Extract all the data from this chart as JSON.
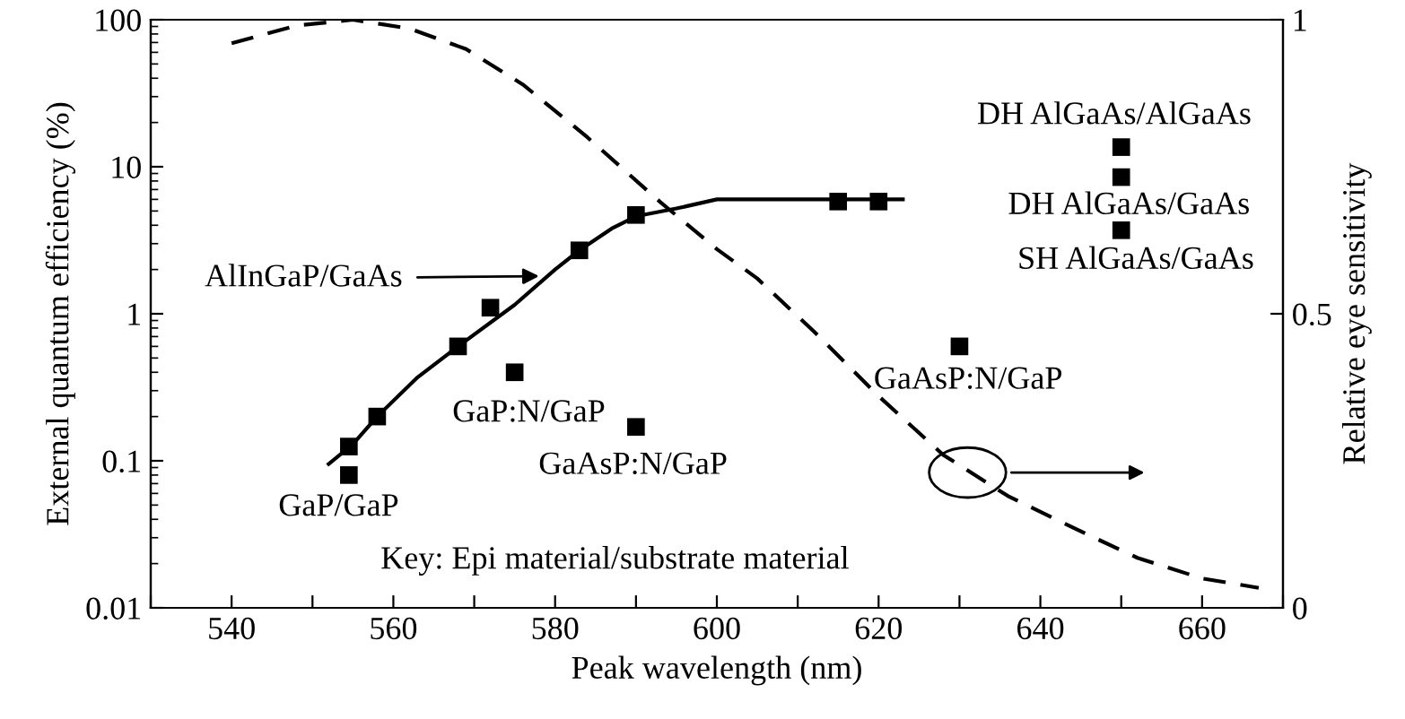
{
  "chart_data": {
    "type": "scatter",
    "xlabel": "Peak wavelength (nm)",
    "ylabel": "External quantum efficiency (%)",
    "y2label": "Relative eye sensitivity",
    "log": "y",
    "marker": "square",
    "grid": false,
    "xlim": [
      530,
      670
    ],
    "xticks": [
      {
        "value": 530,
        "label": null
      },
      540,
      {
        "value": 550,
        "label": null
      },
      560,
      {
        "value": 570,
        "label": null
      },
      580,
      {
        "value": 590,
        "label": null
      },
      600,
      {
        "value": 610,
        "label": null
      },
      620,
      {
        "value": 630,
        "label": null
      },
      640,
      {
        "value": 650,
        "label": null
      },
      660,
      {
        "value": 670,
        "label": null
      }
    ],
    "ylim": [
      0.01,
      100
    ],
    "yticks": [
      {
        "value": 0.01,
        "label": "0.01"
      },
      {
        "value": 0.1,
        "label": "0.1"
      },
      1,
      10,
      100
    ],
    "y2lim": [
      0,
      1
    ],
    "y2ticks": [
      0,
      0.5,
      1
    ],
    "series": [
      {
        "color": "#000000",
        "x": [
          554.5,
          554.5,
          558,
          568,
          572,
          575,
          583,
          590,
          590,
          615,
          620,
          630,
          650,
          650,
          650
        ],
        "values": [
          0.125,
          0.08,
          0.2,
          0.6,
          1.1,
          0.4,
          2.7,
          4.7,
          0.17,
          5.8,
          5.8,
          0.6,
          13.6,
          8.5,
          3.7
        ]
      },
      {
        "type": "line",
        "color": "#000000",
        "line_style": "solid",
        "marker": "none",
        "x": [
          552,
          555,
          558,
          563,
          568,
          575,
          580,
          583,
          587,
          590,
          595,
          600,
          623
        ],
        "values": [
          0.095,
          0.13,
          0.2,
          0.37,
          0.6,
          1.15,
          2,
          2.7,
          3.8,
          4.6,
          5.2,
          6,
          6
        ]
      },
      {
        "type": "line",
        "axis": "y2",
        "color": "#000000",
        "line_style": "dashed",
        "marker": "none",
        "x": [
          540,
          548,
          555,
          562,
          569,
          576,
          584,
          593,
          600,
          605,
          612,
          620,
          628,
          636,
          645,
          652,
          660,
          667
        ],
        "values": [
          0.96,
          0.99,
          1.0,
          0.985,
          0.95,
          0.89,
          0.8,
          0.69,
          0.61,
          0.56,
          0.47,
          0.36,
          0.26,
          0.19,
          0.13,
          0.085,
          0.05,
          0.034
        ]
      }
    ],
    "annotations": [
      "GaP/GaP",
      "GaP:N/GaP",
      "GaAsP:N/GaP",
      "AlInGaP/GaAs",
      "DH AlGaAs/AlGaAs",
      "DH AlGaAs/GaAs",
      "SH AlGaAs/GaAs",
      "GaAsP:N/GaP",
      "Key: Epi material/substrate material"
    ]
  }
}
